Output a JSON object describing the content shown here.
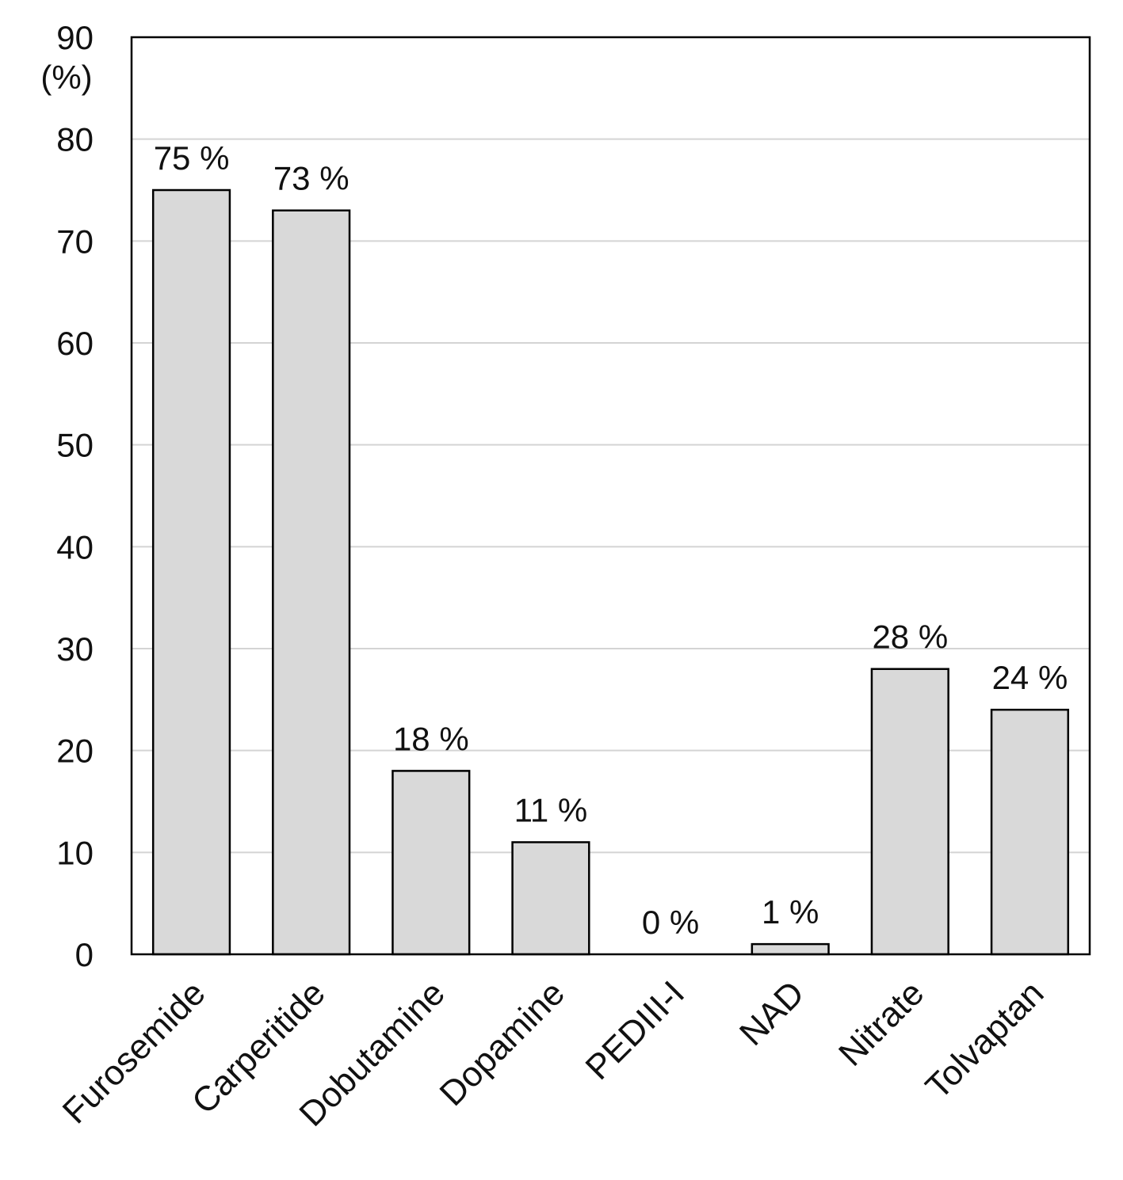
{
  "chart_data": {
    "type": "bar",
    "categories": [
      "Furosemide",
      "Carperitide",
      "Dobutamine",
      "Dopamine",
      "PEDIII-I",
      "NAD",
      "Nitrate",
      "Tolvaptan"
    ],
    "values": [
      75,
      73,
      18,
      11,
      0,
      1,
      28,
      24
    ],
    "data_labels": [
      "75 %",
      "73 %",
      "18 %",
      "11 %",
      "0 %",
      "1 %",
      "28 %",
      "24 %"
    ],
    "ylim": [
      0,
      90
    ],
    "yticks": [
      0,
      10,
      20,
      30,
      40,
      50,
      60,
      70,
      80,
      90
    ],
    "y_unit_label": "(%)",
    "title": "",
    "xlabel": "",
    "ylabel": "",
    "grid": "horizontal",
    "legend": "none",
    "bar_color": "#d9d9d9",
    "gridline_color": "#d4d4d4"
  }
}
